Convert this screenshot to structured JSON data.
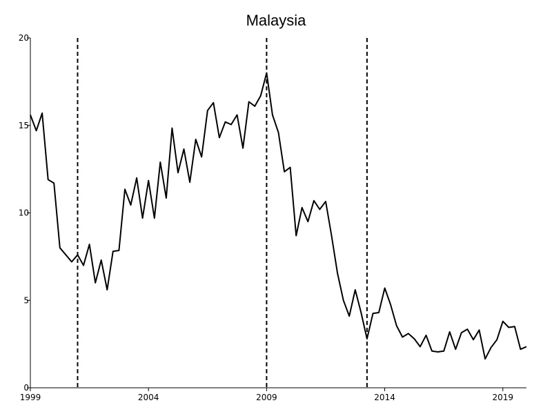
{
  "chart_data": {
    "type": "line",
    "title": "Malaysia",
    "xlabel": "",
    "ylabel": "",
    "xlim": [
      1999,
      2020
    ],
    "ylim": [
      0,
      20
    ],
    "x_ticks": [
      1999,
      2004,
      2009,
      2014,
      2019
    ],
    "y_ticks": [
      0,
      5,
      10,
      15,
      20
    ],
    "grid": false,
    "legend": "none",
    "line_color": "#000000",
    "vertical_dashed_lines": [
      2001,
      2009,
      2013.25
    ],
    "series": [
      {
        "x": [
          1999.0,
          1999.25,
          1999.5,
          1999.75,
          2000.0,
          2000.25,
          2000.5,
          2000.75,
          2001.0,
          2001.25,
          2001.5,
          2001.75,
          2002.0,
          2002.25,
          2002.5,
          2002.75,
          2003.0,
          2003.25,
          2003.5,
          2003.75,
          2004.0,
          2004.25,
          2004.5,
          2004.75,
          2005.0,
          2005.25,
          2005.5,
          2005.75,
          2006.0,
          2006.25,
          2006.5,
          2006.75,
          2007.0,
          2007.25,
          2007.5,
          2007.75,
          2008.0,
          2008.25,
          2008.5,
          2008.75,
          2009.0,
          2009.25,
          2009.5,
          2009.75,
          2010.0,
          2010.25,
          2010.5,
          2010.75,
          2011.0,
          2011.25,
          2011.5,
          2011.75,
          2012.0,
          2012.25,
          2012.5,
          2012.75,
          2013.0,
          2013.25,
          2013.5,
          2013.75,
          2014.0,
          2014.25,
          2014.5,
          2014.75,
          2015.0,
          2015.25,
          2015.5,
          2015.75,
          2016.0,
          2016.25,
          2016.5,
          2016.75,
          2017.0,
          2017.25,
          2017.5,
          2017.75,
          2018.0,
          2018.25,
          2018.5,
          2018.75,
          2019.0,
          2019.25,
          2019.5,
          2019.75,
          2020.0
        ],
        "values": [
          15.6,
          14.7,
          15.7,
          11.9,
          11.7,
          8.0,
          7.6,
          7.2,
          7.6,
          7.0,
          8.2,
          6.0,
          7.3,
          5.6,
          7.8,
          7.85,
          11.35,
          10.45,
          12.0,
          9.7,
          11.85,
          9.7,
          12.9,
          10.85,
          14.85,
          12.3,
          13.65,
          11.75,
          14.2,
          13.2,
          15.85,
          16.3,
          14.3,
          15.2,
          15.05,
          15.6,
          13.7,
          16.35,
          16.1,
          16.7,
          18.0,
          15.6,
          14.6,
          12.35,
          12.6,
          8.7,
          10.3,
          9.5,
          10.7,
          10.2,
          10.65,
          8.7,
          6.55,
          5.0,
          4.1,
          5.6,
          4.3,
          2.8,
          4.25,
          4.3,
          5.7,
          4.75,
          3.55,
          2.9,
          3.1,
          2.8,
          2.35,
          3.0,
          2.1,
          2.05,
          2.1,
          3.2,
          2.2,
          3.15,
          3.35,
          2.75,
          3.3,
          1.65,
          2.3,
          2.75,
          3.8,
          3.45,
          3.5,
          2.2,
          2.35
        ]
      }
    ]
  }
}
